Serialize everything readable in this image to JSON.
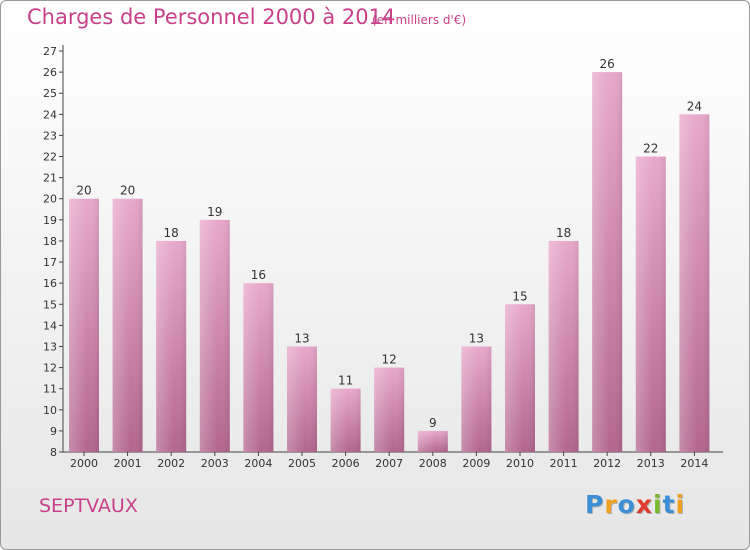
{
  "chart_data": {
    "type": "bar",
    "title": "Charges de Personnel 2000 à 2014",
    "subtitle": "(en milliers d'€)",
    "categories": [
      "2000",
      "2001",
      "2002",
      "2003",
      "2004",
      "2005",
      "2006",
      "2007",
      "2008",
      "2009",
      "2010",
      "2011",
      "2012",
      "2013",
      "2014"
    ],
    "values": [
      20,
      20,
      18,
      19,
      16,
      13,
      11,
      12,
      9,
      13,
      15,
      18,
      26,
      22,
      24
    ],
    "ylim": [
      8,
      27
    ],
    "yticks": [
      8,
      9,
      10,
      11,
      12,
      13,
      14,
      15,
      16,
      17,
      18,
      19,
      20,
      21,
      22,
      23,
      24,
      25,
      26,
      27
    ],
    "xlabel": "",
    "ylabel": "",
    "grid": false,
    "colors": {
      "bar_top": "#e8a8cc",
      "bar_bottom": "#b3668f",
      "text_accent": "#c8408a"
    }
  },
  "location": "SEPTVAUX",
  "brand": {
    "letters": [
      "P",
      "r",
      "o",
      "x",
      "i",
      "t",
      "i"
    ],
    "colors": [
      "#3b8fd6",
      "#f0a020",
      "#3b8fd6",
      "#e03b2e",
      "#7ab82e",
      "#3b8fd6",
      "#f0a020"
    ]
  }
}
